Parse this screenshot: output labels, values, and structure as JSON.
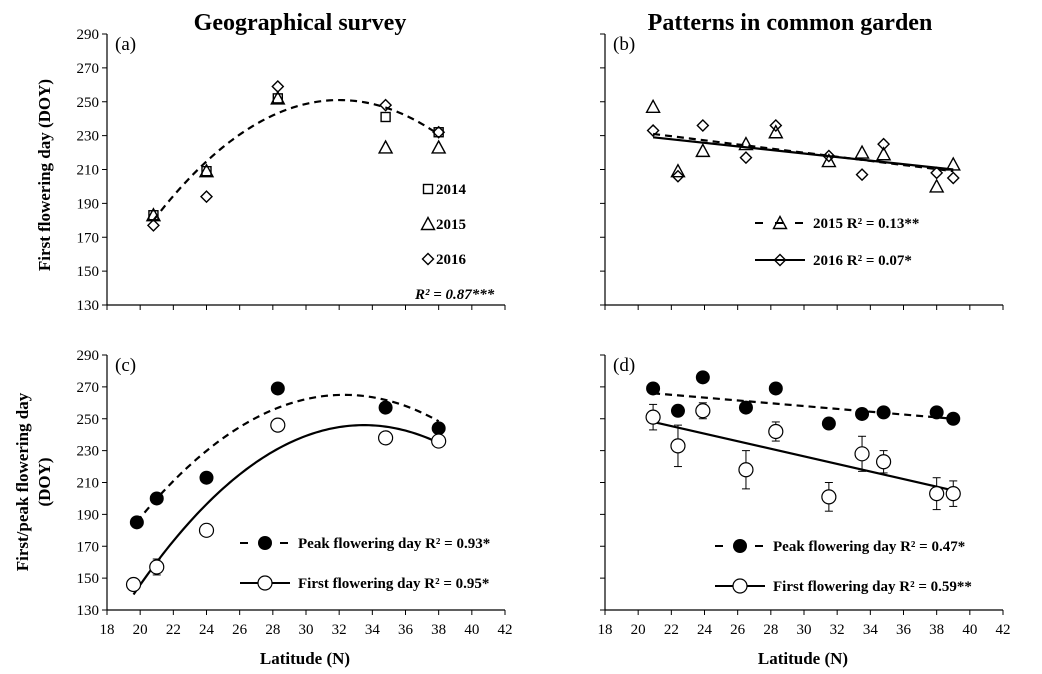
{
  "titles": {
    "left": "Geographical survey",
    "right": "Patterns in common garden"
  },
  "ylabels": {
    "top": "First flowering day (DOY)",
    "bottom_line1": "First/peak flowering day",
    "bottom_line2": "(DOY)"
  },
  "xlabel": "Latitude (N)",
  "chart_data": [
    {
      "panel": "(a)",
      "type": "scatter",
      "xlim": [
        18,
        42
      ],
      "ylim": [
        130,
        290
      ],
      "xticks": [
        18,
        20,
        22,
        24,
        26,
        28,
        30,
        32,
        34,
        36,
        38,
        40,
        42
      ],
      "yticks": [
        130,
        150,
        170,
        190,
        210,
        230,
        250,
        270,
        290
      ],
      "show_y_labels": true,
      "show_x_labels": false,
      "series": [
        {
          "name": "2014",
          "marker": "square",
          "x": [
            20.8,
            24,
            28.3,
            34.8,
            38
          ],
          "y": [
            183,
            209,
            252,
            241,
            232
          ]
        },
        {
          "name": "2015",
          "marker": "triangle",
          "x": [
            20.8,
            24,
            28.3,
            34.8,
            38
          ],
          "y": [
            183,
            209,
            252,
            223,
            223
          ]
        },
        {
          "name": "2016",
          "marker": "diamond",
          "x": [
            20.8,
            24,
            28.3,
            34.8,
            38
          ],
          "y": [
            177,
            194,
            259,
            248,
            232
          ]
        }
      ],
      "fits": [
        {
          "kind": "quadratic",
          "vertex": [
            32,
            251
          ],
          "a": -0.566,
          "xrange": [
            20.8,
            38
          ],
          "style": "dashed"
        }
      ],
      "legend": [
        {
          "marker": "square",
          "text": "2014"
        },
        {
          "marker": "triangle",
          "text": "2015"
        },
        {
          "marker": "diamond",
          "text": "2016"
        },
        {
          "marker": "none",
          "text": "R² = 0.87***"
        }
      ]
    },
    {
      "panel": "(b)",
      "type": "scatter",
      "xlim": [
        18,
        42
      ],
      "ylim": [
        130,
        290
      ],
      "xticks": [
        18,
        20,
        22,
        24,
        26,
        28,
        30,
        32,
        34,
        36,
        38,
        40,
        42
      ],
      "yticks": [
        130,
        150,
        170,
        190,
        210,
        230,
        250,
        270,
        290
      ],
      "show_y_labels": false,
      "show_x_labels": false,
      "series": [
        {
          "name": "2015",
          "marker": "triangle",
          "x": [
            20.9,
            22.4,
            23.9,
            26.5,
            28.3,
            31.5,
            33.5,
            34.8,
            38,
            39
          ],
          "y": [
            247,
            209,
            221,
            225,
            232,
            215,
            220,
            219,
            200,
            213
          ]
        },
        {
          "name": "2016",
          "marker": "diamond",
          "x": [
            20.9,
            22.4,
            23.9,
            26.5,
            28.3,
            31.5,
            33.5,
            34.8,
            38,
            39
          ],
          "y": [
            233,
            206,
            236,
            217,
            236,
            218,
            207,
            225,
            208,
            205
          ]
        }
      ],
      "fits": [
        {
          "kind": "linear",
          "points": [
            [
              20.9,
              231
            ],
            [
              39,
              209
            ]
          ],
          "style": "dashed"
        },
        {
          "kind": "linear",
          "points": [
            [
              20.9,
              229
            ],
            [
              39,
              210
            ]
          ],
          "style": "solid"
        }
      ],
      "legend": [
        {
          "marker": "triangle",
          "line": "dashed",
          "text": "2015  R² = 0.13**"
        },
        {
          "marker": "diamond",
          "line": "solid",
          "text": "2016  R² = 0.07*"
        }
      ]
    },
    {
      "panel": "(c)",
      "type": "scatter",
      "xlim": [
        18,
        42
      ],
      "ylim": [
        130,
        290
      ],
      "xticks": [
        18,
        20,
        22,
        24,
        26,
        28,
        30,
        32,
        34,
        36,
        38,
        40,
        42
      ],
      "yticks": [
        130,
        150,
        170,
        190,
        210,
        230,
        250,
        270,
        290
      ],
      "show_y_labels": true,
      "show_x_labels": true,
      "series": [
        {
          "name": "Peak flowering day",
          "marker": "filled-circle",
          "x": [
            19.8,
            21,
            24,
            28.3,
            34.8,
            38
          ],
          "y": [
            185,
            200,
            213,
            269,
            257,
            244
          ]
        },
        {
          "name": "First flowering day",
          "marker": "open-circle",
          "x": [
            19.6,
            21,
            24,
            28.3,
            34.8,
            38
          ],
          "y": [
            146,
            157,
            180,
            246,
            238,
            236
          ],
          "err": [
            0,
            5,
            0,
            0,
            0,
            0
          ]
        }
      ],
      "fits": [
        {
          "kind": "quadratic",
          "vertex": [
            32.3,
            265
          ],
          "a": -0.51,
          "xrange": [
            19.8,
            38
          ],
          "style": "dashed"
        },
        {
          "kind": "quadratic",
          "vertex": [
            33.5,
            246
          ],
          "a": -0.55,
          "xrange": [
            19.6,
            38
          ],
          "style": "solid"
        }
      ],
      "legend": [
        {
          "marker": "filled-circle",
          "line": "dashed",
          "text": "Peak flowering day  R² = 0.93*"
        },
        {
          "marker": "open-circle",
          "line": "solid",
          "text": "First flowering day  R² = 0.95*"
        }
      ]
    },
    {
      "panel": "(d)",
      "type": "scatter",
      "xlim": [
        18,
        42
      ],
      "ylim": [
        130,
        290
      ],
      "xticks": [
        18,
        20,
        22,
        24,
        26,
        28,
        30,
        32,
        34,
        36,
        38,
        40,
        42
      ],
      "yticks": [
        130,
        150,
        170,
        190,
        210,
        230,
        250,
        270,
        290
      ],
      "show_y_labels": false,
      "show_x_labels": true,
      "series": [
        {
          "name": "Peak flowering day",
          "marker": "filled-circle",
          "x": [
            20.9,
            22.4,
            23.9,
            26.5,
            28.3,
            31.5,
            33.5,
            34.8,
            38,
            39
          ],
          "y": [
            269,
            255,
            276,
            257,
            269,
            247,
            253,
            254,
            254,
            250
          ]
        },
        {
          "name": "First flowering day",
          "marker": "open-circle",
          "x": [
            20.9,
            22.4,
            23.9,
            26.5,
            28.3,
            31.5,
            33.5,
            34.8,
            38,
            39
          ],
          "y": [
            251,
            233,
            255,
            218,
            242,
            201,
            228,
            223,
            203,
            203
          ],
          "err": [
            8,
            13,
            5,
            12,
            6,
            9,
            11,
            7,
            10,
            8
          ]
        }
      ],
      "fits": [
        {
          "kind": "linear",
          "points": [
            [
              20.9,
              266
            ],
            [
              39,
              250
            ]
          ],
          "style": "dashed"
        },
        {
          "kind": "linear",
          "points": [
            [
              20.9,
              248
            ],
            [
              39,
              205
            ]
          ],
          "style": "solid"
        }
      ],
      "legend": [
        {
          "marker": "filled-circle",
          "line": "dashed",
          "text": "Peak flowering day  R² = 0.47*"
        },
        {
          "marker": "open-circle",
          "line": "solid",
          "text": "First flowering day  R² = 0.59**"
        }
      ]
    }
  ]
}
